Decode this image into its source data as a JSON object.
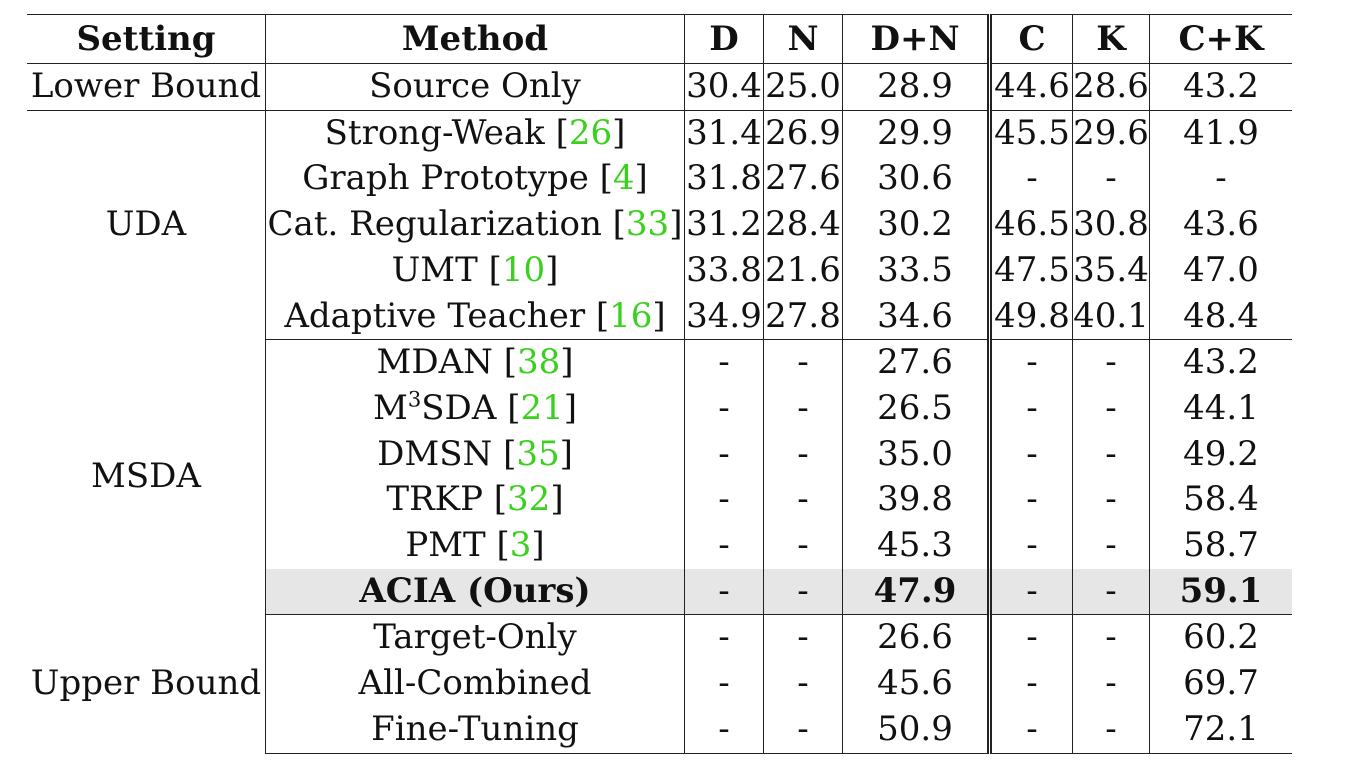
{
  "table": {
    "headers": [
      "Setting",
      "Method",
      "D",
      "N",
      "D+N",
      "C",
      "K",
      "C+K"
    ],
    "groups": [
      {
        "setting": "Lower Bound",
        "rows": [
          {
            "method": "Source Only",
            "ref": "",
            "d": "30.4",
            "n": "25.0",
            "dn": "28.9",
            "c": "44.6",
            "k": "28.6",
            "ck": "43.2"
          }
        ]
      },
      {
        "setting": "UDA",
        "rows": [
          {
            "method": "Strong-Weak ",
            "ref": "26",
            "d": "31.4",
            "n": "26.9",
            "dn": "29.9",
            "c": "45.5",
            "k": "29.6",
            "ck": "41.9"
          },
          {
            "method": "Graph Prototype ",
            "ref": "4",
            "d": "31.8",
            "n": "27.6",
            "dn": "30.6",
            "c": "-",
            "k": "-",
            "ck": "-"
          },
          {
            "method": "Cat. Regularization ",
            "ref": "33",
            "d": "31.2",
            "n": "28.4",
            "dn": "30.2",
            "c": "46.5",
            "k": "30.8",
            "ck": "43.6"
          },
          {
            "method": "UMT ",
            "ref": "10",
            "d": "33.8",
            "n": "21.6",
            "dn": "33.5",
            "c": "47.5",
            "k": "35.4",
            "ck": "47.0"
          },
          {
            "method": "Adaptive Teacher ",
            "ref": "16",
            "d": "34.9",
            "n": "27.8",
            "dn": "34.6",
            "c": "49.8",
            "k": "40.1",
            "ck": "48.4"
          }
        ]
      },
      {
        "setting": "MSDA",
        "rows": [
          {
            "method": "MDAN ",
            "ref": "38",
            "d": "-",
            "n": "-",
            "dn": "27.6",
            "c": "-",
            "k": "-",
            "ck": "43.2"
          },
          {
            "method": "M",
            "sup": "3",
            "method_rest": "SDA ",
            "ref": "21",
            "d": "-",
            "n": "-",
            "dn": "26.5",
            "c": "-",
            "k": "-",
            "ck": "44.1"
          },
          {
            "method": "DMSN ",
            "ref": "35",
            "d": "-",
            "n": "-",
            "dn": "35.0",
            "c": "-",
            "k": "-",
            "ck": "49.2"
          },
          {
            "method": "TRKP ",
            "ref": "32",
            "d": "-",
            "n": "-",
            "dn": "39.8",
            "c": "-",
            "k": "-",
            "ck": "58.4"
          },
          {
            "method": "PMT ",
            "ref": "3",
            "d": "-",
            "n": "-",
            "dn": "45.3",
            "c": "-",
            "k": "-",
            "ck": "58.7"
          },
          {
            "method": "ACIA (Ours)",
            "ref": "",
            "d": "-",
            "n": "-",
            "dn": "47.9",
            "c": "-",
            "k": "-",
            "ck": "59.1",
            "highlight": true
          }
        ]
      },
      {
        "setting": "Upper Bound",
        "rows": [
          {
            "method": "Target-Only",
            "ref": "",
            "d": "-",
            "n": "-",
            "dn": "26.6",
            "c": "-",
            "k": "-",
            "ck": "60.2"
          },
          {
            "method": "All-Combined",
            "ref": "",
            "d": "-",
            "n": "-",
            "dn": "45.6",
            "c": "-",
            "k": "-",
            "ck": "69.7"
          },
          {
            "method": "Fine-Tuning",
            "ref": "",
            "d": "-",
            "n": "-",
            "dn": "50.9",
            "c": "-",
            "k": "-",
            "ck": "72.1"
          }
        ]
      }
    ]
  },
  "colors": {
    "citation": "#39d11e",
    "highlight_row": "#e6e6e6",
    "rule": "#222222"
  }
}
